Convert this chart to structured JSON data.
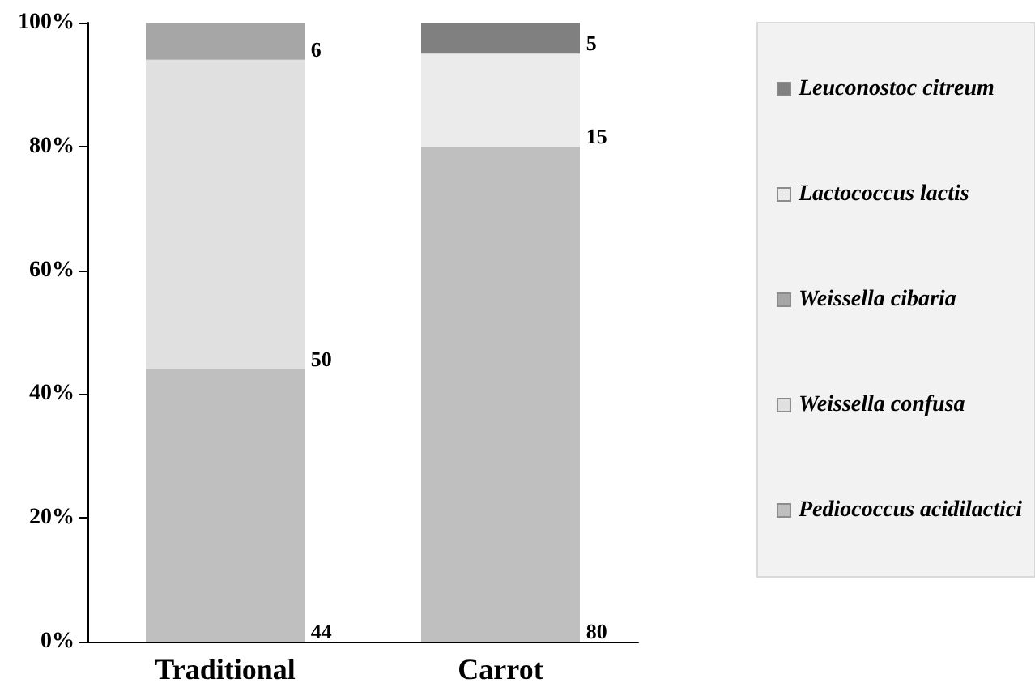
{
  "chart_data": {
    "type": "bar",
    "stacked": true,
    "categories": [
      "Traditional",
      "Carrot"
    ],
    "series": [
      {
        "name": "Pediococcus acidilactici",
        "color": "#bfbfbf",
        "values": [
          44,
          80
        ]
      },
      {
        "name": "Weissella confusa",
        "color": "#e0e0e0",
        "values": [
          50,
          null
        ]
      },
      {
        "name": "Weissella cibaria",
        "color": "#a6a6a6",
        "values": [
          6,
          null
        ]
      },
      {
        "name": "Lactococcus lactis",
        "color": "#ebebeb",
        "values": [
          null,
          15
        ]
      },
      {
        "name": "Leuconostoc citreum",
        "color": "#808080",
        "values": [
          null,
          5
        ]
      }
    ],
    "ylim": [
      0,
      100
    ],
    "yticks": [
      {
        "value": 0,
        "label": "0%"
      },
      {
        "value": 20,
        "label": "20%"
      },
      {
        "value": 40,
        "label": "40%"
      },
      {
        "value": 60,
        "label": "60%"
      },
      {
        "value": 80,
        "label": "80%"
      },
      {
        "value": 100,
        "label": "100%"
      }
    ],
    "grid": false,
    "legend": "right",
    "data_labels": true
  }
}
